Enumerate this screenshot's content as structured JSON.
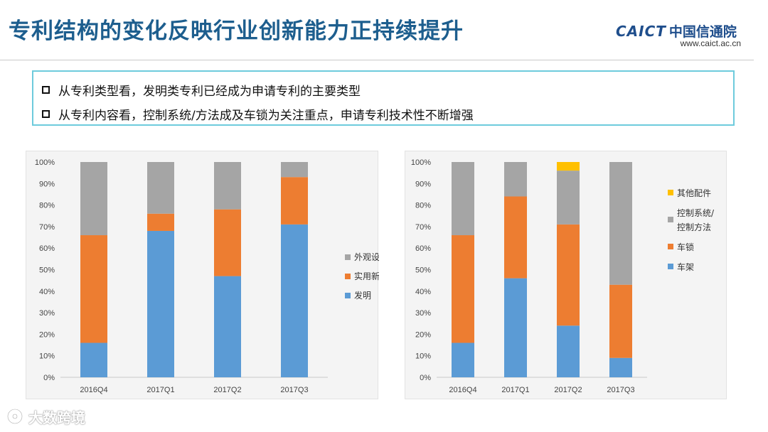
{
  "header": {
    "title": "专利结构的变化反映行业创新能力正持续提升",
    "logo_text": "CAICT",
    "logo_cn": "中国信通院",
    "logo_url": "www.caict.ac.cn"
  },
  "bullets": [
    "从专利类型看，发明类专利已经成为申请专利的主要类型",
    "从专利内容看，控制系统/方法成及车锁为关注重点，申请专利技术性不断增强"
  ],
  "watermark": "大数跨境",
  "chart_data": [
    {
      "type": "bar",
      "stacked": true,
      "categories": [
        "2016Q4",
        "2017Q1",
        "2017Q2",
        "2017Q3"
      ],
      "y_ticks": [
        "0%",
        "10%",
        "20%",
        "30%",
        "40%",
        "50%",
        "60%",
        "70%",
        "80%",
        "90%",
        "100%"
      ],
      "ylim": [
        0,
        100
      ],
      "series": [
        {
          "name": "发明",
          "color": "#5b9bd5",
          "values": [
            16,
            68,
            47,
            71
          ]
        },
        {
          "name": "实用新型",
          "color": "#ed7d31",
          "values": [
            50,
            8,
            31,
            22
          ]
        },
        {
          "name": "外观设计",
          "color": "#a5a5a5",
          "values": [
            34,
            24,
            22,
            7
          ]
        }
      ],
      "legend": [
        {
          "label": "外观设计",
          "color": "#a5a5a5"
        },
        {
          "label": "实用新型",
          "color": "#ed7d31"
        },
        {
          "label": "发明",
          "color": "#5b9bd5"
        }
      ],
      "legend_position": "right"
    },
    {
      "type": "bar",
      "stacked": true,
      "categories": [
        "2016Q4",
        "2017Q1",
        "2017Q2",
        "2017Q3"
      ],
      "y_ticks": [
        "0%",
        "10%",
        "20%",
        "30%",
        "40%",
        "50%",
        "60%",
        "70%",
        "80%",
        "90%",
        "100%"
      ],
      "ylim": [
        0,
        100
      ],
      "series": [
        {
          "name": "车架",
          "color": "#5b9bd5",
          "values": [
            16,
            46,
            24,
            9
          ]
        },
        {
          "name": "车锁",
          "color": "#ed7d31",
          "values": [
            50,
            38,
            47,
            34
          ]
        },
        {
          "name": "控制系统/控制方法",
          "color": "#a5a5a5",
          "values": [
            34,
            16,
            25,
            57
          ]
        },
        {
          "name": "其他配件",
          "color": "#ffc000",
          "values": [
            0,
            0,
            4,
            0
          ]
        }
      ],
      "legend": [
        {
          "label": "其他配件",
          "color": "#ffc000"
        },
        {
          "label": "控制系统/控制方法",
          "color": "#a5a5a5",
          "lines": [
            "控制系统/",
            "控制方法"
          ]
        },
        {
          "label": "车锁",
          "color": "#ed7d31"
        },
        {
          "label": "车架",
          "color": "#5b9bd5"
        }
      ],
      "legend_position": "right"
    }
  ]
}
